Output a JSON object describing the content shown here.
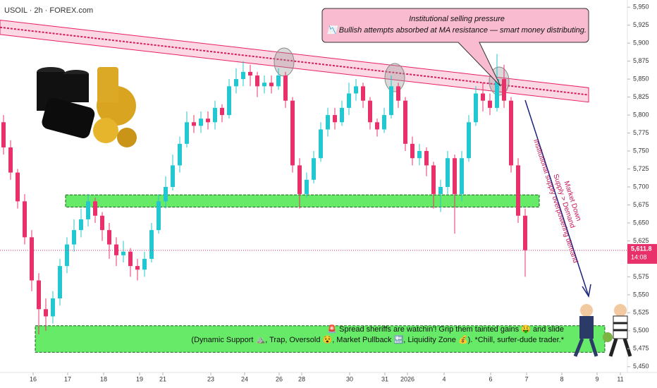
{
  "chart_data": {
    "type": "candlestick",
    "title": "USOIL · 2h · FOREX.com",
    "x": [
      0,
      1,
      2,
      3,
      4,
      5,
      6,
      7,
      8,
      9,
      10,
      11,
      12,
      13,
      14,
      15,
      16,
      17,
      18,
      19,
      20,
      21,
      22,
      23,
      24,
      25,
      26,
      27,
      28,
      29,
      30,
      31,
      32,
      33,
      34,
      35,
      36,
      37,
      38,
      39,
      40,
      41,
      42,
      43,
      44,
      45,
      46,
      47,
      48,
      49,
      50,
      51,
      52,
      53,
      54,
      55,
      56,
      57,
      58,
      59,
      60,
      61,
      62,
      63,
      64,
      65,
      66,
      67,
      68,
      69,
      70,
      71,
      72,
      73,
      74
    ],
    "open": [
      5790,
      5755,
      5720,
      5680,
      5630,
      5570,
      5530,
      5520,
      5545,
      5590,
      5620,
      5640,
      5655,
      5680,
      5660,
      5640,
      5620,
      5605,
      5610,
      5590,
      5585,
      5600,
      5640,
      5680,
      5700,
      5730,
      5760,
      5790,
      5785,
      5795,
      5790,
      5810,
      5800,
      5840,
      5850,
      5860,
      5855,
      5840,
      5845,
      5840,
      5855,
      5820,
      5730,
      5690,
      5710,
      5740,
      5780,
      5800,
      5790,
      5810,
      5830,
      5840,
      5820,
      5790,
      5780,
      5800,
      5840,
      5820,
      5760,
      5740,
      5750,
      5730,
      5690,
      5700,
      5740,
      5690,
      5740,
      5790,
      5830,
      5820,
      5810,
      5850,
      5820,
      5730,
      5660
    ],
    "high": [
      5800,
      5765,
      5725,
      5690,
      5640,
      5580,
      5545,
      5555,
      5600,
      5630,
      5655,
      5670,
      5690,
      5685,
      5665,
      5650,
      5630,
      5625,
      5615,
      5600,
      5610,
      5650,
      5690,
      5715,
      5745,
      5770,
      5805,
      5800,
      5805,
      5805,
      5820,
      5815,
      5850,
      5865,
      5875,
      5870,
      5860,
      5855,
      5855,
      5865,
      5860,
      5825,
      5740,
      5720,
      5750,
      5790,
      5810,
      5810,
      5820,
      5845,
      5850,
      5845,
      5825,
      5795,
      5810,
      5855,
      5845,
      5825,
      5770,
      5760,
      5755,
      5735,
      5710,
      5750,
      5745,
      5750,
      5800,
      5840,
      5845,
      5830,
      5885,
      5870,
      5825,
      5740,
      5670
    ],
    "low": [
      5745,
      5710,
      5670,
      5620,
      5555,
      5495,
      5500,
      5510,
      5535,
      5580,
      5610,
      5630,
      5645,
      5650,
      5625,
      5600,
      5590,
      5595,
      5575,
      5570,
      5575,
      5595,
      5635,
      5670,
      5695,
      5720,
      5755,
      5775,
      5775,
      5780,
      5780,
      5790,
      5795,
      5830,
      5840,
      5840,
      5825,
      5830,
      5830,
      5835,
      5810,
      5720,
      5670,
      5685,
      5705,
      5735,
      5770,
      5780,
      5785,
      5800,
      5820,
      5810,
      5780,
      5770,
      5775,
      5795,
      5810,
      5750,
      5730,
      5730,
      5715,
      5670,
      5665,
      5690,
      5635,
      5680,
      5735,
      5785,
      5805,
      5800,
      5805,
      5810,
      5720,
      5650,
      5575
    ],
    "close": [
      5755,
      5720,
      5680,
      5630,
      5570,
      5530,
      5520,
      5545,
      5590,
      5620,
      5640,
      5655,
      5680,
      5660,
      5640,
      5620,
      5605,
      5610,
      5590,
      5585,
      5600,
      5640,
      5680,
      5700,
      5730,
      5760,
      5790,
      5785,
      5795,
      5790,
      5810,
      5800,
      5840,
      5850,
      5860,
      5855,
      5840,
      5845,
      5840,
      5855,
      5820,
      5730,
      5690,
      5710,
      5740,
      5780,
      5800,
      5790,
      5810,
      5830,
      5840,
      5820,
      5790,
      5780,
      5800,
      5840,
      5820,
      5760,
      5740,
      5750,
      5730,
      5690,
      5700,
      5740,
      5690,
      5740,
      5790,
      5830,
      5820,
      5810,
      5850,
      5820,
      5730,
      5660,
      5612
    ],
    "up_color": "#22c7cf",
    "down_color": "#e8306a",
    "xlim": [
      -0.5,
      88.5
    ],
    "xticks": [
      {
        "value": 4.2,
        "label": "16"
      },
      {
        "value": 9.1,
        "label": "17"
      },
      {
        "value": 14.2,
        "label": "18"
      },
      {
        "value": 19.3,
        "label": "19"
      },
      {
        "value": 22.6,
        "label": "21"
      },
      {
        "value": 29.4,
        "label": "23"
      },
      {
        "value": 34.2,
        "label": "24"
      },
      {
        "value": 39.1,
        "label": "26"
      },
      {
        "value": 42.3,
        "label": "28"
      },
      {
        "value": 49.1,
        "label": "30"
      },
      {
        "value": 54.1,
        "label": "31"
      },
      {
        "value": 57.3,
        "label": "2026"
      },
      {
        "value": 62.5,
        "label": "4"
      },
      {
        "value": 69.1,
        "label": "6"
      },
      {
        "value": 74.2,
        "label": "7"
      },
      {
        "value": 79.2,
        "label": "8"
      },
      {
        "value": 84.2,
        "label": "9"
      },
      {
        "value": 87.5,
        "label": "11"
      }
    ],
    "ylim": [
      5440,
      5960
    ],
    "yticks": [
      {
        "value": 5450,
        "label": "5,450"
      },
      {
        "value": 5475,
        "label": "5,475"
      },
      {
        "value": 5500,
        "label": "5,500"
      },
      {
        "value": 5525,
        "label": "5,525"
      },
      {
        "value": 5550,
        "label": "5,550"
      },
      {
        "value": 5575,
        "label": "5,575"
      },
      {
        "value": 5600,
        "label": "5,600"
      },
      {
        "value": 5625,
        "label": "5,625"
      },
      {
        "value": 5650,
        "label": "5,650"
      },
      {
        "value": 5675,
        "label": "5,675"
      },
      {
        "value": 5700,
        "label": "5,700"
      },
      {
        "value": 5725,
        "label": "5,725"
      },
      {
        "value": 5750,
        "label": "5,750"
      },
      {
        "value": 5775,
        "label": "5,775"
      },
      {
        "value": 5800,
        "label": "5,800"
      },
      {
        "value": 5825,
        "label": "5,825"
      },
      {
        "value": 5850,
        "label": "5,850"
      },
      {
        "value": 5875,
        "label": "5,875"
      },
      {
        "value": 5900,
        "label": "5,900"
      },
      {
        "value": 5925,
        "label": "5,925"
      },
      {
        "value": 5950,
        "label": "5,950"
      }
    ],
    "last_price": {
      "value": 5611.8,
      "label": "5,611.8"
    },
    "countdown": "14:08",
    "zones": [
      {
        "x": [
          8.8,
          76
        ],
        "low": 5672,
        "high": 5689
      },
      {
        "x": [
          4.5,
          85.3
        ],
        "low": 5470,
        "high": 5507
      }
    ],
    "resistance_band": {
      "x": [
        -0.5,
        83
      ],
      "upper": [
        5932,
        5838
      ],
      "lower": [
        5912,
        5818
      ]
    },
    "annotations": {
      "top_title": "Institutional selling pressure",
      "top_text": "📉 Bullish attempts absorbed at MA resistance — smart money distributing.",
      "arrow_texts": [
        "Market Down",
        "Supply > Demand",
        "Institutional supply overpowering demand"
      ],
      "bottom_line1": "🚨 Spread sheriffs are watchin'! Grip them tainted gains 🤑 and slide",
      "bottom_line2": "(Dynamic Support ⛰️, Trap, Oversold 😵, Market Pullback 🔙, Liquidity Zone 💰). *Chill, surfer-dude trader.*"
    }
  }
}
